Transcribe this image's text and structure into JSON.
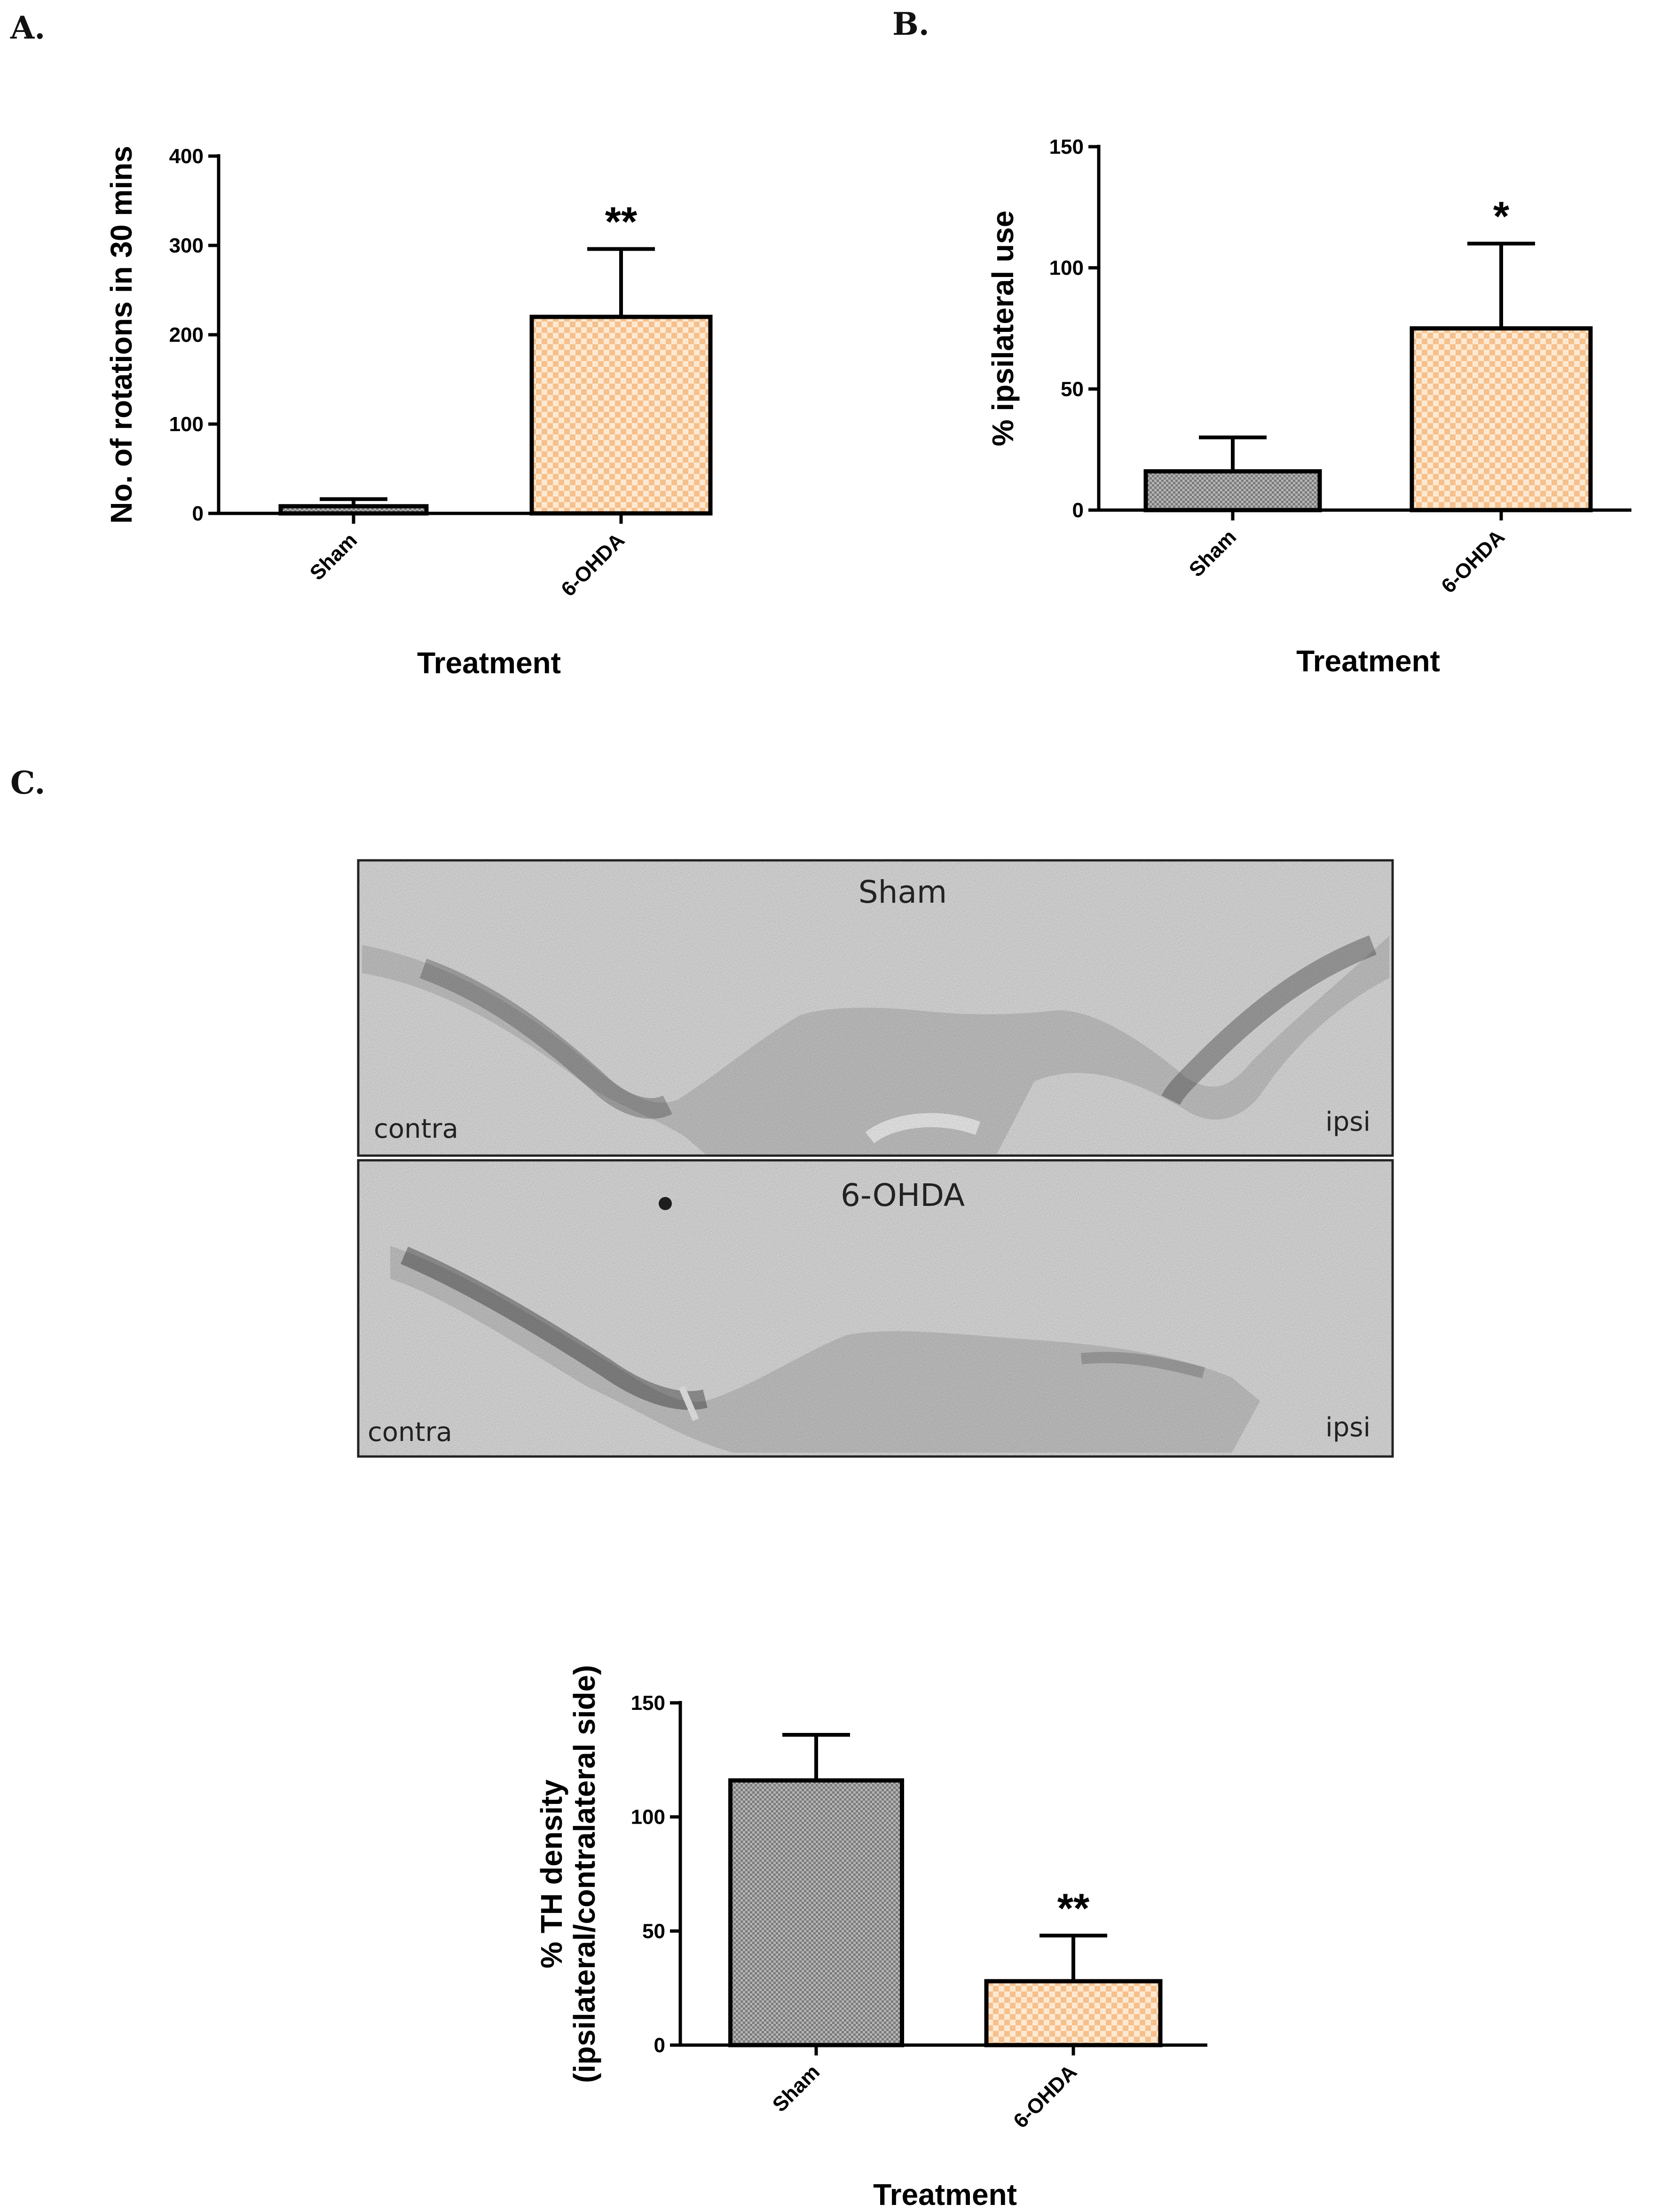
{
  "panel_labels": {
    "a": "A.",
    "b": "B.",
    "c": "C."
  },
  "colors": {
    "sham_fill": "#9a9a9a",
    "ohda_fill": "#f8c89a",
    "axis": "#000000",
    "tissue": "#dcdcdc"
  },
  "micrographs": {
    "top": {
      "title": "Sham",
      "left": "contra",
      "right": "ipsi"
    },
    "bottom": {
      "title": "6-OHDA",
      "left": "contra",
      "right": "ipsi"
    }
  },
  "chart_data": [
    {
      "id": "A",
      "type": "bar",
      "categories": [
        "Sham",
        "6-OHDA"
      ],
      "values": [
        8,
        220
      ],
      "errors": [
        8,
        76
      ],
      "significance": [
        "",
        "**"
      ],
      "xlabel": "Treatment",
      "ylabel": "No. of rotations in 30 mins",
      "ylim": [
        0,
        400
      ],
      "yticks": [
        0,
        100,
        200,
        300,
        400
      ],
      "grid": false
    },
    {
      "id": "B",
      "type": "bar",
      "categories": [
        "Sham",
        "6-OHDA"
      ],
      "values": [
        16,
        75
      ],
      "errors": [
        14,
        35
      ],
      "significance": [
        "",
        "*"
      ],
      "xlabel": "Treatment",
      "ylabel": "% ipsilateral use",
      "ylim": [
        0,
        150
      ],
      "yticks": [
        0,
        50,
        100,
        150
      ],
      "grid": false
    },
    {
      "id": "C",
      "type": "bar",
      "categories": [
        "Sham",
        "6-OHDA"
      ],
      "values": [
        116,
        28
      ],
      "errors": [
        20,
        20
      ],
      "significance": [
        "",
        "**"
      ],
      "xlabel": "Treatment",
      "ylabel": "% TH density",
      "ylabel2": "(ipsilateral/contralateral side)",
      "ylim": [
        0,
        150
      ],
      "yticks": [
        0,
        50,
        100,
        150
      ],
      "grid": false
    }
  ]
}
